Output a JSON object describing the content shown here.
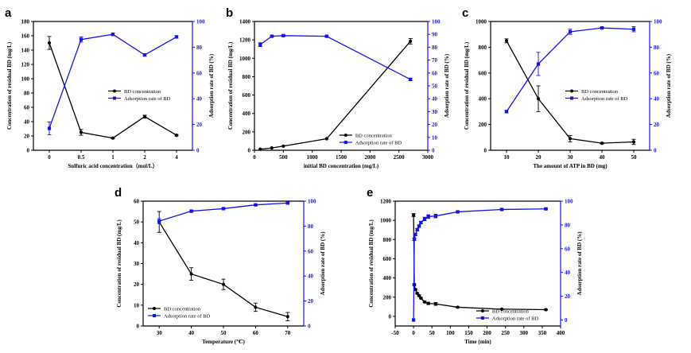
{
  "colors": {
    "black_series": "#000000",
    "blue_series": "#1414e6"
  },
  "chart_data": [
    {
      "panel": "a",
      "type": "line",
      "xlabel": "Sulfuric acid concentration（mol/L）",
      "ylabel_left": "Concentration of residual BD (mg/L)",
      "ylabel_right": "Adsorption rate of BD (%)",
      "x_scale": "category",
      "xticks": [
        "0",
        "0.5",
        "1",
        "2",
        "4"
      ],
      "xlim": [
        -0.5,
        4.5
      ],
      "ylim_left": [
        0,
        180
      ],
      "yticks_left": [
        0,
        20,
        40,
        60,
        80,
        100,
        120,
        140,
        160,
        180
      ],
      "ylim_right": [
        0,
        100
      ],
      "yticks_right": [
        0,
        20,
        40,
        60,
        80,
        100
      ],
      "legend_position": "center-right",
      "legend": [
        "BD concentration",
        "Adsorption rate of BD"
      ],
      "series": [
        {
          "name": "BD concentration",
          "axis": "left",
          "color": "#000000",
          "x": [
            0,
            1,
            2,
            3,
            4
          ],
          "y": [
            150,
            25,
            17,
            47,
            21
          ],
          "err": [
            9,
            4,
            1,
            2,
            1
          ]
        },
        {
          "name": "Adsorption rate of BD",
          "axis": "right",
          "color": "#1414e6",
          "x": [
            0,
            1,
            2,
            3,
            4
          ],
          "y": [
            17,
            86,
            90,
            74,
            88
          ],
          "err": [
            5,
            2,
            1,
            1,
            1
          ]
        }
      ]
    },
    {
      "panel": "b",
      "type": "line",
      "xlabel": "initial BD  concentration (mg/L)",
      "ylabel_left": "Concentration of residual BD (mg/L)",
      "ylabel_right": "Adsorption rate of BD (%)",
      "x_scale": "linear",
      "xticks": [
        0,
        500,
        1000,
        1500,
        2000,
        2500,
        3000
      ],
      "xlim": [
        0,
        3000
      ],
      "ylim_left": [
        0,
        1400
      ],
      "yticks_left": [
        0,
        200,
        400,
        600,
        800,
        1000,
        1200,
        1400
      ],
      "ylim_right": [
        0,
        100
      ],
      "yticks_right": [
        0,
        10,
        20,
        30,
        40,
        50,
        60,
        70,
        80,
        90,
        100
      ],
      "legend_position": "bottom-right",
      "legend": [
        "BD concentration",
        "Adsorption rate of BD"
      ],
      "series": [
        {
          "name": "BD concentration",
          "axis": "left",
          "color": "#000000",
          "x": [
            100,
            300,
            500,
            1250,
            2700
          ],
          "y": [
            12,
            25,
            45,
            125,
            1185
          ],
          "err": [
            0,
            0,
            0,
            0,
            30
          ]
        },
        {
          "name": "Adsorption rate of BD",
          "axis": "right",
          "color": "#1414e6",
          "x": [
            100,
            300,
            500,
            1250,
            2700
          ],
          "y": [
            82,
            88.5,
            89,
            88.5,
            55
          ],
          "err": [
            1.5,
            0.5,
            0.5,
            0.5,
            1
          ]
        }
      ]
    },
    {
      "panel": "c",
      "type": "line",
      "xlabel": "The amount of ATP in BD  (mg)",
      "ylabel_left": "Concentration of residual BD (mg/L)",
      "ylabel_right": "Adsorption rate of BD (%)",
      "x_scale": "linear",
      "xticks": [
        10,
        20,
        30,
        40,
        50
      ],
      "xlim": [
        5,
        55
      ],
      "ylim_left": [
        0,
        1000
      ],
      "yticks_left": [
        0,
        200,
        400,
        600,
        800,
        1000
      ],
      "ylim_right": [
        0,
        100
      ],
      "yticks_right": [
        0,
        20,
        40,
        60,
        80,
        100
      ],
      "legend_position": "center-right",
      "legend": [
        "BD concentration",
        "Adsorption rate of BD"
      ],
      "series": [
        {
          "name": "BD concentration",
          "axis": "left",
          "color": "#000000",
          "x": [
            10,
            20,
            30,
            40,
            50
          ],
          "y": [
            850,
            400,
            90,
            55,
            65
          ],
          "err": [
            15,
            100,
            25,
            5,
            20
          ]
        },
        {
          "name": "Adsorption rate of BD",
          "axis": "right",
          "color": "#1414e6",
          "x": [
            10,
            20,
            30,
            40,
            50
          ],
          "y": [
            30,
            67,
            92,
            95,
            94
          ],
          "err": [
            1,
            9,
            2,
            0.5,
            2
          ]
        }
      ]
    },
    {
      "panel": "d",
      "type": "line",
      "xlabel": "Temperature (℃)",
      "ylabel_left": "Concentration of residual BD (mg/L)",
      "ylabel_right": "Adsorption rate of BD (%)",
      "x_scale": "linear",
      "xticks": [
        30,
        40,
        50,
        60,
        70
      ],
      "xlim": [
        25,
        75
      ],
      "ylim_left": [
        0,
        60
      ],
      "yticks_left": [
        0,
        10,
        20,
        30,
        40,
        50,
        60
      ],
      "ylim_right": [
        0,
        100
      ],
      "yticks_right": [
        0,
        20,
        40,
        60,
        80,
        100
      ],
      "legend_position": "bottom-left",
      "legend": [
        "BD concentration",
        "Adsorption rate of BD"
      ],
      "series": [
        {
          "name": "BD concentration",
          "axis": "left",
          "color": "#000000",
          "x": [
            30,
            40,
            50,
            60,
            70
          ],
          "y": [
            50,
            25,
            20,
            9,
            4.5
          ],
          "err": [
            5,
            3,
            2.5,
            2,
            2
          ]
        },
        {
          "name": "Adsorption rate of BD",
          "axis": "right",
          "color": "#1414e6",
          "x": [
            30,
            40,
            50,
            60,
            70
          ],
          "y": [
            84,
            92,
            94,
            97,
            98.5
          ],
          "err": [
            2,
            1,
            0.5,
            0.5,
            0.5
          ]
        }
      ]
    },
    {
      "panel": "e",
      "type": "line",
      "xlabel": "Time (min)",
      "ylabel_left": "Concentration of residual BD (mg/L)",
      "ylabel_right": "Adsorption rate of BD (%)",
      "x_scale": "linear",
      "xticks": [
        -50,
        0,
        50,
        100,
        150,
        200,
        250,
        300,
        350,
        400
      ],
      "xlim": [
        -50,
        400
      ],
      "ylim_left": [
        -100,
        1200
      ],
      "yticks_left": [
        0,
        200,
        400,
        600,
        800,
        1000,
        1200
      ],
      "ylim_right": [
        -5,
        100
      ],
      "yticks_right": [
        0,
        20,
        40,
        60,
        80,
        100
      ],
      "legend_position": "bottom-right",
      "legend": [
        "BD concentration",
        "Adsorption rate of BD"
      ],
      "series": [
        {
          "name": "BD concentration",
          "axis": "left",
          "color": "#000000",
          "x": [
            0,
            2,
            5,
            10,
            15,
            20,
            30,
            40,
            60,
            120,
            240,
            360
          ],
          "y": [
            1055,
            330,
            280,
            240,
            215,
            190,
            150,
            135,
            130,
            95,
            75,
            70
          ],
          "err": [
            15,
            10,
            8,
            8,
            8,
            8,
            10,
            12,
            15,
            5,
            5,
            5
          ]
        },
        {
          "name": "Adsorption rate of BD",
          "axis": "right",
          "color": "#1414e6",
          "x": [
            0,
            2,
            5,
            10,
            15,
            20,
            30,
            40,
            60,
            120,
            240,
            360
          ],
          "y": [
            0,
            68,
            72,
            76,
            79,
            82,
            85,
            87,
            87.5,
            91,
            93,
            93.5
          ],
          "err": [
            0,
            1,
            1,
            1,
            1,
            1,
            1.5,
            1.5,
            1.5,
            0.5,
            0.5,
            0.5
          ]
        }
      ]
    }
  ]
}
